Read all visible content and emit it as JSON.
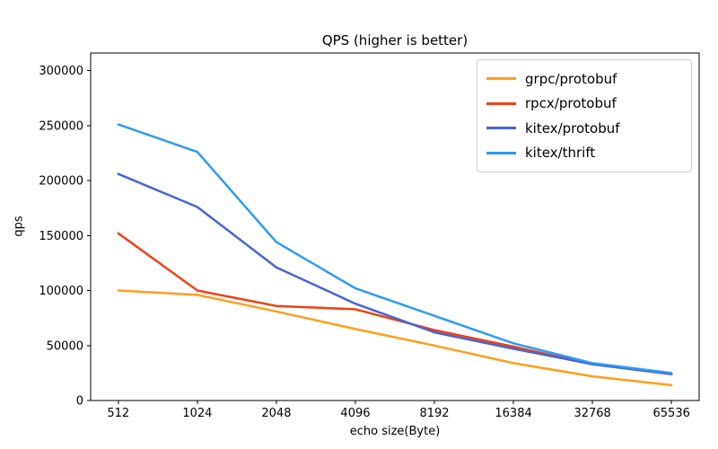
{
  "title": "QPS (higher is better)",
  "chart_data": {
    "type": "line",
    "title": "QPS (higher is better)",
    "xlabel": "echo size(Byte)",
    "ylabel": "qps",
    "categories": [
      "512",
      "1024",
      "2048",
      "4096",
      "8192",
      "16384",
      "32768",
      "65536"
    ],
    "yticks": [
      0,
      50000,
      100000,
      150000,
      200000,
      250000,
      300000
    ],
    "ylim": [
      0,
      316000
    ],
    "grid": false,
    "legend_position": "upper right",
    "series": [
      {
        "name": "grpc/protobuf",
        "color": "#FF9E1C",
        "values": [
          100000,
          96000,
          81000,
          65000,
          50000,
          34000,
          22000,
          14000
        ]
      },
      {
        "name": "rpcx/protobuf",
        "color": "#EF4216",
        "values": [
          152000,
          100000,
          86000,
          83000,
          64000,
          49000,
          33000,
          24000
        ]
      },
      {
        "name": "kitex/protobuf",
        "color": "#4A64D2",
        "values": [
          206000,
          176000,
          121000,
          88000,
          62000,
          47000,
          33000,
          24000
        ]
      },
      {
        "name": "kitex/thrift",
        "color": "#2D9BF7",
        "values": [
          251000,
          226000,
          144000,
          102000,
          77000,
          52000,
          34000,
          25000
        ]
      }
    ]
  }
}
